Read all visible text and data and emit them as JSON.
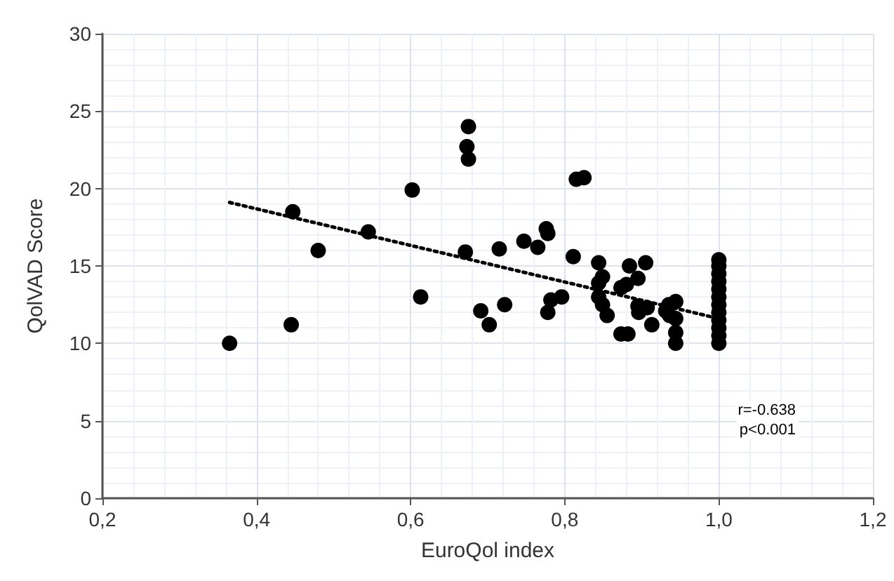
{
  "chart_data": {
    "type": "scatter",
    "xlabel": "EuroQol index",
    "ylabel": "QolVAD Score",
    "xlim": [
      0.2,
      1.2
    ],
    "xticks": [
      {
        "value": 0.2,
        "label": "0,2"
      },
      {
        "value": 0.4,
        "label": "0,4"
      },
      {
        "value": 0.6,
        "label": "0,6"
      },
      {
        "value": 0.8,
        "label": "0,8"
      },
      {
        "value": 1.0,
        "label": "1,0"
      },
      {
        "value": 1.2,
        "label": "1,2"
      }
    ],
    "ylim": [
      0,
      30
    ],
    "yticks": [
      0,
      5,
      10,
      15,
      20,
      25,
      30
    ],
    "grid": true,
    "marker": "circle",
    "annotations": [
      "r=-0.638",
      "p<0.001"
    ],
    "series": [
      {
        "color": "#000000",
        "x": [
          0.365,
          0.445,
          0.447,
          0.48,
          0.545,
          0.602,
          0.613,
          0.675,
          0.673,
          0.675,
          0.671,
          0.691,
          0.702,
          0.715,
          0.722,
          0.747,
          0.765,
          0.776,
          0.778,
          0.778,
          0.782,
          0.796,
          0.811,
          0.815,
          0.825,
          0.844,
          0.849,
          0.844,
          0.844,
          0.849,
          0.855,
          0.873,
          0.882,
          0.873,
          0.88,
          0.884,
          0.895,
          0.905,
          0.895,
          0.896,
          0.907,
          0.913,
          0.931,
          0.935,
          0.936,
          0.944,
          0.944,
          0.944,
          0.944,
          1.0,
          1.0,
          1.0,
          1.0,
          1.0,
          1.0,
          1.0,
          1.0,
          1.0,
          1.0,
          1.0,
          1.0
        ],
        "values": [
          10.0,
          11.2,
          18.5,
          16.0,
          17.2,
          19.9,
          13.0,
          24.0,
          22.7,
          21.9,
          15.9,
          12.1,
          11.2,
          16.1,
          12.5,
          16.6,
          16.2,
          17.4,
          17.1,
          12.0,
          12.8,
          13.0,
          15.6,
          20.6,
          20.7,
          15.2,
          14.3,
          13.9,
          13.0,
          12.5,
          11.8,
          10.6,
          10.6,
          13.6,
          13.8,
          15.0,
          14.2,
          15.2,
          12.4,
          12.0,
          12.3,
          11.2,
          12.1,
          12.5,
          11.8,
          12.7,
          11.6,
          10.7,
          10.0,
          10.0,
          10.5,
          11.0,
          11.5,
          12.0,
          12.5,
          13.0,
          13.5,
          14.0,
          14.5,
          15.0,
          15.4
        ]
      },
      {
        "type": "line",
        "color": "#000000",
        "line_style": "dotted",
        "marker": "none",
        "x": [
          0.365,
          1.0
        ],
        "values": [
          19.1,
          11.6
        ]
      }
    ]
  }
}
